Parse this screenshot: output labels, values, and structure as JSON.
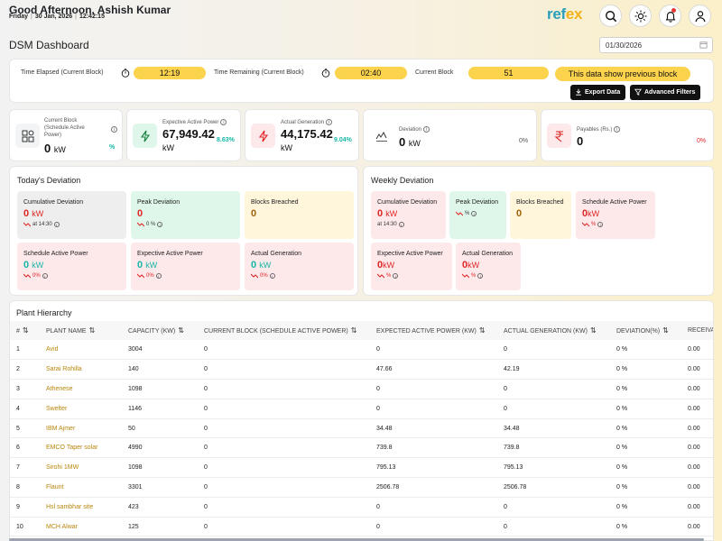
{
  "header": {
    "greeting": "Good Afternoon, Ashish Kumar",
    "day": "Friday",
    "date": "30 Jan, 2026",
    "time": "12:42:15",
    "logo_part1": "ref",
    "logo_part2": "ex",
    "icons": [
      "search-icon",
      "sun-icon",
      "bell-icon",
      "user-icon"
    ]
  },
  "page": {
    "title": "DSM Dashboard",
    "date_value": "01/30/2026"
  },
  "block": {
    "elapsed_label": "Time Elapsed (Current Block)",
    "elapsed_value": "12:19",
    "remaining_label": "Time Remaining (Current Block)",
    "remaining_value": "02:40",
    "current_label": "Current Block",
    "current_value": "51",
    "notice": "This data show previous block",
    "export_label": "Export Data",
    "filters_label": "Advanced Filters"
  },
  "kpis": [
    {
      "label": "Current Block (Schedule Active Power)",
      "value": "0",
      "unit": "kW",
      "pct": "%",
      "icon": "grid-icon",
      "pct_color": "#14b8a6"
    },
    {
      "label": "Expective Active Power",
      "value": "67,949.42",
      "unit": "kW",
      "pct": "8.63%",
      "icon": "bolt-icon",
      "pct_color": "#14b8a6"
    },
    {
      "label": "Actual Generation",
      "value": "44,175.42",
      "unit": "kW",
      "pct": "9.04%",
      "icon": "bolt-icon",
      "pct_color": "#14b8a6"
    },
    {
      "label": "Deviation",
      "value": "0",
      "unit": "kW",
      "pct": "0%",
      "icon": "chart-icon",
      "pct_color": "#555555"
    },
    {
      "label": "Payables (Rs.)",
      "value": "0",
      "unit": "",
      "pct": "0%",
      "icon": "rupee-icon",
      "pct_color": "#e02424"
    }
  ],
  "today": {
    "title": "Today's Deviation",
    "cumulative_label": "Cumulative Deviation",
    "cumulative_value": "0",
    "cumulative_unit": "kW",
    "cumulative_sub": "at 14:30",
    "peak_label": "Peak Deviation",
    "peak_value": "0",
    "peak_sub": "0 %",
    "blocks_label": "Blocks Breached",
    "blocks_value": "0",
    "sap_label": "Schedule Active Power",
    "sap_value": "0",
    "sap_unit": "kW",
    "sap_sub": "0%",
    "eap_label": "Expective Active Power",
    "eap_value": "0",
    "eap_unit": "kW",
    "eap_sub": "0%",
    "ag_label": "Actual Generation",
    "ag_value": "0",
    "ag_unit": "kW",
    "ag_sub": "0%"
  },
  "weekly": {
    "title": "Weekly Deviation",
    "cumulative_label": "Cumulative Deviation",
    "cumulative_value": "0",
    "cumulative_unit": "kW",
    "cumulative_sub": "at 14:30",
    "peak_label": "Peak Deviation",
    "peak_sub": "%",
    "blocks_label": "Blocks Breached",
    "blocks_value": "0",
    "sap_label": "Schedule Active Power",
    "sap_value": "0",
    "sap_unit": "kW",
    "sap_sub": "%",
    "eap_label": "Expective Active Power",
    "eap_value": "0",
    "eap_unit": "kW",
    "eap_sub": "%",
    "ag_label": "Actual Generation",
    "ag_value": "0",
    "ag_unit": "kW",
    "ag_sub": "%"
  },
  "hierarchy": {
    "title": "Plant Hierarchy",
    "columns": [
      "#",
      "PLANT NAME",
      "CAPACITY (KW)",
      "CURRENT BLOCK (SCHEDULE ACTIVE POWER)",
      "EXPECTED ACTIVE POWER (KW)",
      "ACTUAL GENERATION (KW)",
      "DEVIATION(%)",
      "RECEIVA"
    ],
    "rows": [
      [
        "1",
        "Avid",
        "3004",
        "0",
        "0",
        "0",
        "0 %",
        "0.00"
      ],
      [
        "2",
        "Sarai Rohilla",
        "140",
        "0",
        "47.66",
        "42.19",
        "0 %",
        "0.00"
      ],
      [
        "3",
        "Athenese",
        "1098",
        "0",
        "0",
        "0",
        "0 %",
        "0.00"
      ],
      [
        "4",
        "Swelter",
        "1146",
        "0",
        "0",
        "0",
        "0 %",
        "0.00"
      ],
      [
        "5",
        "IBM Ajmer",
        "50",
        "0",
        "34.48",
        "34.48",
        "0 %",
        "0.00"
      ],
      [
        "6",
        "EMCO Taper solar",
        "4990",
        "0",
        "739.8",
        "739.8",
        "0 %",
        "0.00"
      ],
      [
        "7",
        "Sirohi 1MW",
        "1098",
        "0",
        "795.13",
        "795.13",
        "0 %",
        "0.00"
      ],
      [
        "8",
        "Flaunt",
        "3301",
        "0",
        "2506.78",
        "2506.78",
        "0 %",
        "0.00"
      ],
      [
        "9",
        "Hsl sambhar site",
        "423",
        "0",
        "0",
        "0",
        "0 %",
        "0.00"
      ],
      [
        "10",
        "MCH Alwar",
        "125",
        "0",
        "0",
        "0",
        "0 %",
        "0.00"
      ]
    ]
  }
}
